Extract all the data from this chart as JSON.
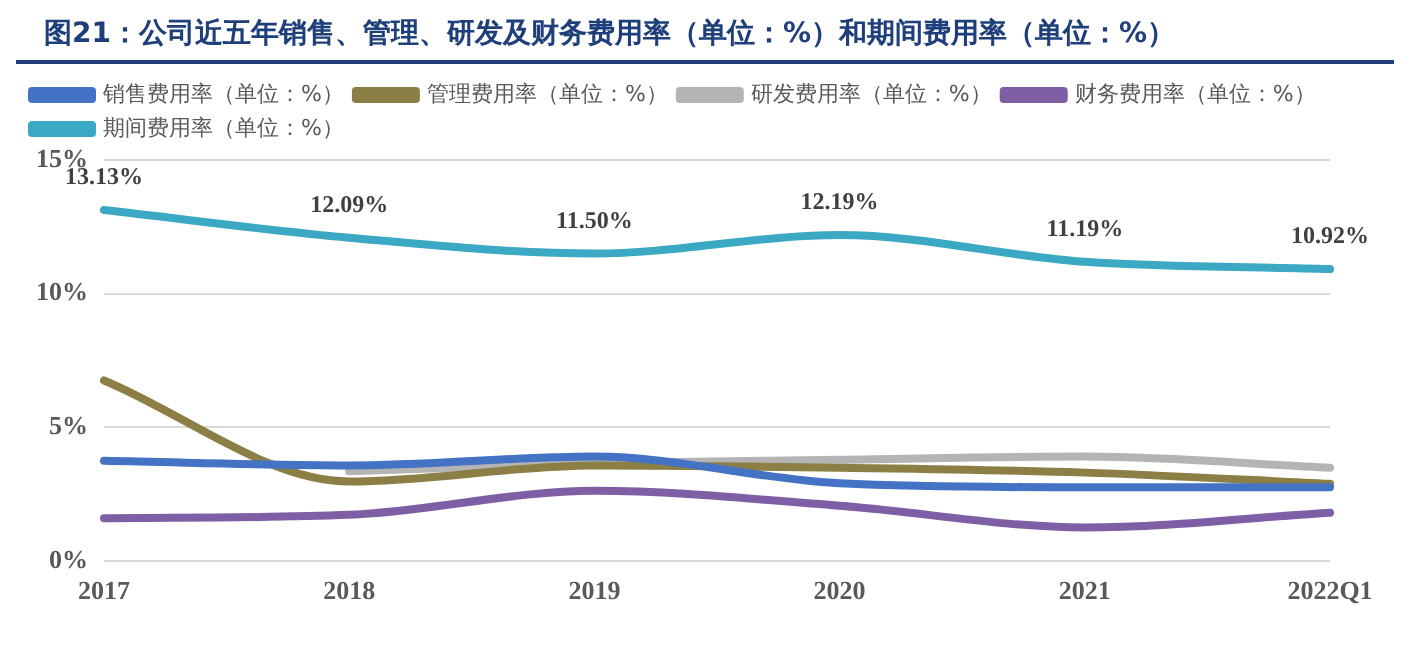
{
  "chart_data": {
    "type": "line",
    "title": "图21：公司近五年销售、管理、研发及财务费用率（单位：%）和期间费用率（单位：%）",
    "categories": [
      "2017",
      "2018",
      "2019",
      "2020",
      "2021",
      "2022Q1"
    ],
    "series": [
      {
        "name": "销售费用率（单位：%）",
        "color": "#4472c4",
        "values": [
          3.74,
          3.57,
          3.9,
          2.9,
          2.75,
          2.75
        ]
      },
      {
        "name": "管理费用率（单位：%）",
        "color": "#8c7f45",
        "values": [
          6.75,
          2.97,
          3.57,
          3.48,
          3.3,
          2.88
        ]
      },
      {
        "name": "研发费用率（单位：%）",
        "color": "#b4b4b4",
        "values": [
          null,
          3.35,
          3.65,
          3.78,
          3.9,
          3.48
        ]
      },
      {
        "name": "财务费用率（单位：%）",
        "color": "#7e5fa5",
        "values": [
          1.59,
          1.72,
          2.62,
          2.06,
          1.25,
          1.8
        ]
      },
      {
        "name": "期间费用率（单位：%）",
        "color": "#3ba8c4",
        "values": [
          13.13,
          12.09,
          11.5,
          12.19,
          11.19,
          10.92
        ],
        "value_labels": [
          "13.13%",
          "12.09%",
          "11.50%",
          "12.19%",
          "11.19%",
          "10.92%"
        ]
      }
    ],
    "ylim": [
      0,
      15
    ],
    "yticks": [
      {
        "value": 0,
        "label": "0%"
      },
      {
        "value": 5,
        "label": "5%"
      },
      {
        "value": 10,
        "label": "10%"
      },
      {
        "value": 15,
        "label": "15%"
      }
    ],
    "grid": "y",
    "legend": "top",
    "marker": "none",
    "line_style": "solid"
  }
}
